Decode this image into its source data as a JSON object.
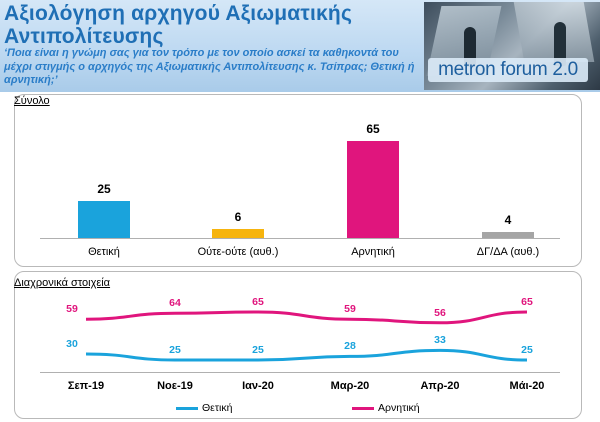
{
  "header": {
    "title": "Αξιολόγηση αρχηγού Αξιωματικής Αντιπολίτευσης",
    "question": "‘Ποια είναι η γνώμη σας για τον τρόπο με τον οποίο ασκεί τα καθηκοντά του μέχρι στιγμής ο αρχηγός της Αξιωματικής Αντιπολίτευσης κ. Τσίπρας; Θετική ή αρνητική;’",
    "logo": "metron forum 2.0"
  },
  "colors": {
    "positive": "#1aa3dc",
    "neutral": "#f6b40e",
    "negative": "#e0157d",
    "dkna": "#a5a5a5",
    "title": "#1f6fb5"
  },
  "panel1_title": "Σύνολο",
  "panel2_title": "Διαχρονικά στοιχεία",
  "chart_data": [
    {
      "type": "bar",
      "title": "Σύνολο",
      "categories": [
        "Θετική",
        "Ούτε-ούτε (αυθ.)",
        "Αρνητική",
        "ΔΓ/ΔΑ (αυθ.)"
      ],
      "values": [
        25,
        6,
        65,
        4
      ],
      "labels": [
        "25",
        "6",
        "65",
        "4"
      ],
      "colors": [
        "#1aa3dc",
        "#f6b40e",
        "#e0157d",
        "#a5a5a5"
      ],
      "ylim": [
        0,
        70
      ]
    },
    {
      "type": "line",
      "title": "Διαχρονικά στοιχεία",
      "categories": [
        "Σεπ-19",
        "Νοε-19",
        "Ιαν-20",
        "Μαρ-20",
        "Απρ-20",
        "Μάι-20"
      ],
      "series": [
        {
          "name": "Θετική",
          "color": "#1aa3dc",
          "values": [
            30,
            25,
            25,
            28,
            33,
            25
          ],
          "labels": [
            "30",
            "25",
            "25",
            "28",
            "33",
            "25"
          ]
        },
        {
          "name": "Αρνητική",
          "color": "#e0157d",
          "values": [
            59,
            64,
            65,
            59,
            56,
            65
          ],
          "labels": [
            "59",
            "64",
            "65",
            "59",
            "56",
            "65"
          ]
        }
      ]
    }
  ]
}
